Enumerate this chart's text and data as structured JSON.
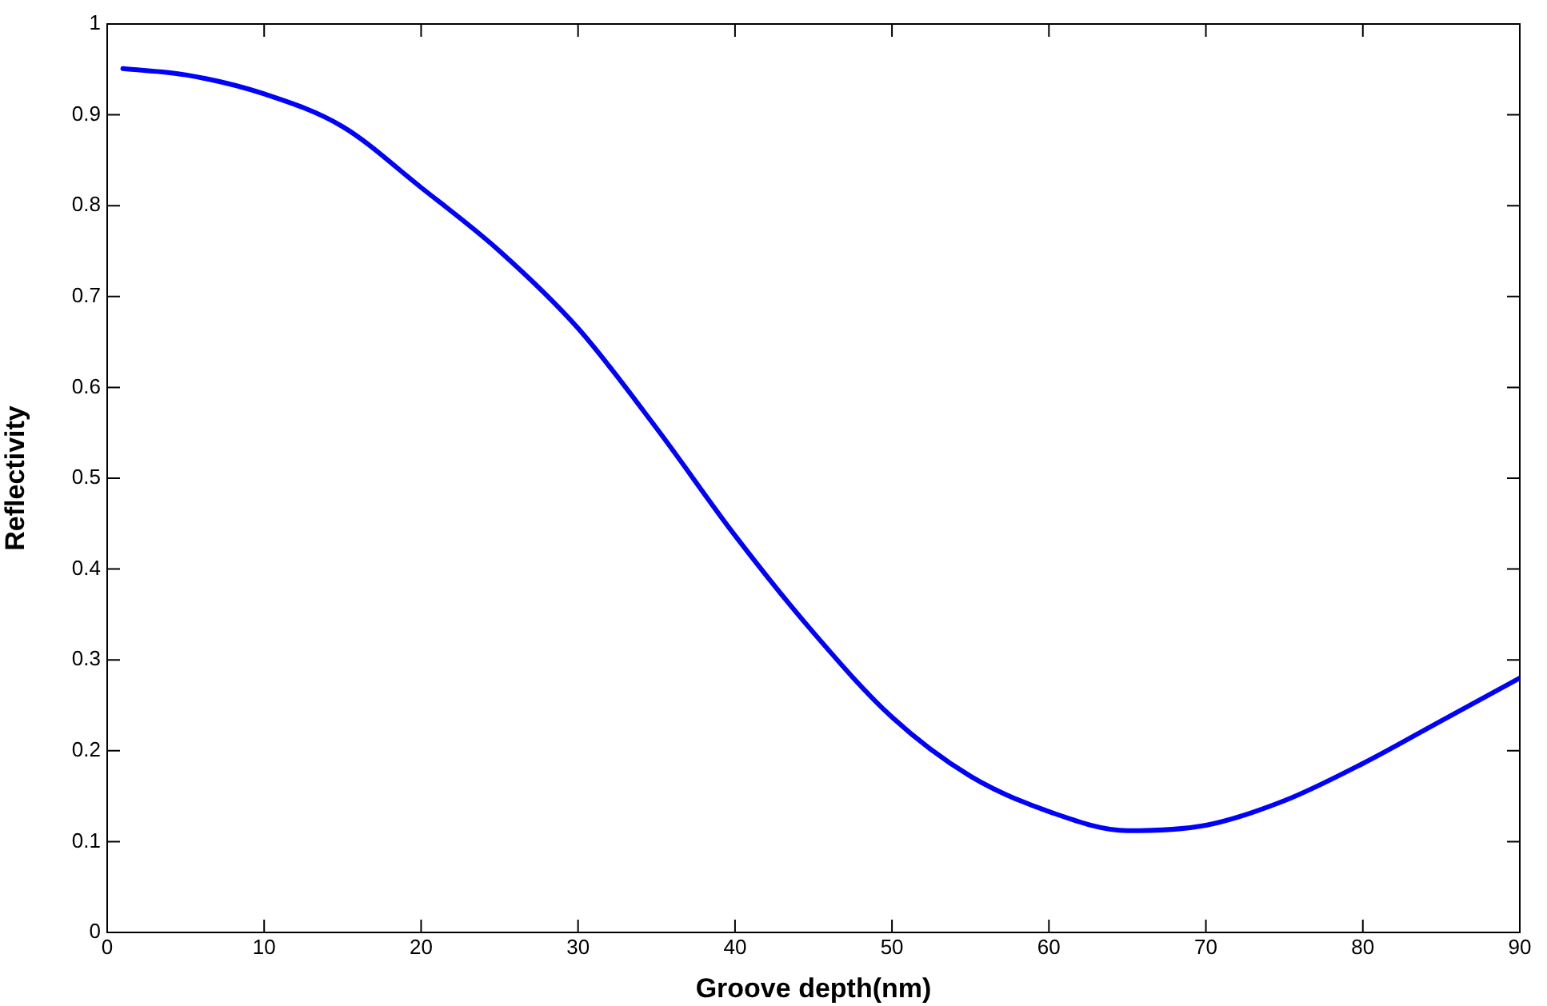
{
  "chart_data": {
    "type": "line",
    "xlabel": "Groove depth(nm)",
    "ylabel": "Reflectivity",
    "xlim": [
      0,
      90
    ],
    "xticks": [
      0,
      10,
      20,
      30,
      40,
      50,
      60,
      70,
      80,
      90
    ],
    "ylim": [
      0,
      1
    ],
    "yticks": [
      0,
      0.1,
      0.2,
      0.3,
      0.4,
      0.5,
      0.6,
      0.7,
      0.8,
      0.9,
      1
    ],
    "grid": false,
    "legend": false,
    "marker": "none",
    "line_style": "solid",
    "series": [
      {
        "color": "#0000ff",
        "x": [
          1,
          5,
          10,
          15,
          20,
          25,
          30,
          35,
          40,
          45,
          50,
          55,
          60,
          65,
          70,
          75,
          80,
          85,
          90
        ],
        "values": [
          0.951,
          0.944,
          0.923,
          0.887,
          0.82,
          0.75,
          0.665,
          0.555,
          0.437,
          0.33,
          0.237,
          0.172,
          0.133,
          0.112,
          0.118,
          0.145,
          0.186,
          0.233,
          0.28
        ]
      }
    ]
  }
}
